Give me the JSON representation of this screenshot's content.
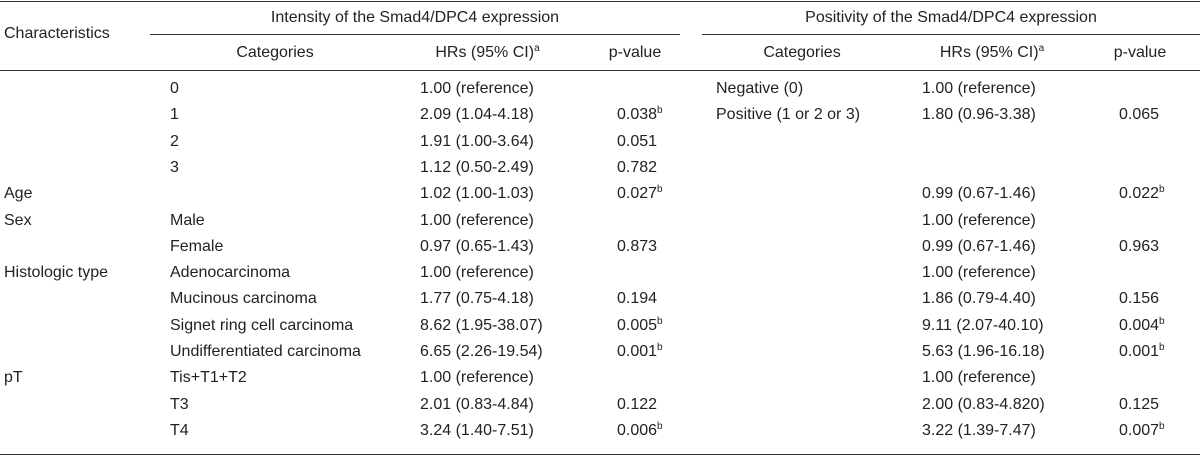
{
  "table": {
    "characteristics_label": "Characteristics",
    "groups": [
      {
        "title": "Intensity of the Smad4/DPC4 expression",
        "col_categories": "Categories",
        "col_hr": "HRs (95% CI)",
        "col_hr_mark": "a",
        "col_p": "p-value"
      },
      {
        "title": "Positivity of the Smad4/DPC4 expression",
        "col_categories": "Categories",
        "col_hr": "HRs (95% CI)",
        "col_hr_mark": "a",
        "col_p": "p-value"
      }
    ],
    "rows": [
      {
        "char": "",
        "cat1": "0",
        "hr1": "1.00 (reference)",
        "p1": "",
        "p1_mark": "",
        "cat2": "Negative (0)",
        "hr2": "1.00 (reference)",
        "p2": "",
        "p2_mark": ""
      },
      {
        "char": "",
        "cat1": "1",
        "hr1": "2.09 (1.04-4.18)",
        "p1": "0.038",
        "p1_mark": "b",
        "cat2": "Positive (1 or 2 or 3)",
        "hr2": "1.80 (0.96-3.38)",
        "p2": "0.065",
        "p2_mark": ""
      },
      {
        "char": "",
        "cat1": "2",
        "hr1": "1.91 (1.00-3.64)",
        "p1": "0.051",
        "p1_mark": "",
        "cat2": "",
        "hr2": "",
        "p2": "",
        "p2_mark": ""
      },
      {
        "char": "",
        "cat1": "3",
        "hr1": "1.12 (0.50-2.49)",
        "p1": "0.782",
        "p1_mark": "",
        "cat2": "",
        "hr2": "",
        "p2": "",
        "p2_mark": ""
      },
      {
        "char": "Age",
        "cat1": "",
        "hr1": "1.02 (1.00-1.03)",
        "p1": "0.027",
        "p1_mark": "b",
        "cat2": "",
        "hr2": "0.99 (0.67-1.46)",
        "p2": "0.022",
        "p2_mark": "b"
      },
      {
        "char": "Sex",
        "cat1": "Male",
        "hr1": "1.00 (reference)",
        "p1": "",
        "p1_mark": "",
        "cat2": "",
        "hr2": "1.00 (reference)",
        "p2": "",
        "p2_mark": ""
      },
      {
        "char": "",
        "cat1": "Female",
        "hr1": "0.97 (0.65-1.43)",
        "p1": "0.873",
        "p1_mark": "",
        "cat2": "",
        "hr2": "0.99 (0.67-1.46)",
        "p2": "0.963",
        "p2_mark": ""
      },
      {
        "char": "Histologic type",
        "cat1": "Adenocarcinoma",
        "hr1": "1.00 (reference)",
        "p1": "",
        "p1_mark": "",
        "cat2": "",
        "hr2": "1.00 (reference)",
        "p2": "",
        "p2_mark": ""
      },
      {
        "char": "",
        "cat1": "Mucinous carcinoma",
        "hr1": "1.77 (0.75-4.18)",
        "p1": "0.194",
        "p1_mark": "",
        "cat2": "",
        "hr2": "1.86 (0.79-4.40)",
        "p2": "0.156",
        "p2_mark": ""
      },
      {
        "char": "",
        "cat1": "Signet ring cell carcinoma",
        "hr1": "8.62 (1.95-38.07)",
        "p1": "0.005",
        "p1_mark": "b",
        "cat2": "",
        "hr2": "9.11 (2.07-40.10)",
        "p2": "0.004",
        "p2_mark": "b"
      },
      {
        "char": "",
        "cat1": "Undifferentiated carcinoma",
        "hr1": "6.65 (2.26-19.54)",
        "p1": "0.001",
        "p1_mark": "b",
        "cat2": "",
        "hr2": "5.63 (1.96-16.18)",
        "p2": "0.001",
        "p2_mark": "b"
      },
      {
        "char": "pT",
        "cat1": "Tis+T1+T2",
        "hr1": "1.00 (reference)",
        "p1": "",
        "p1_mark": "",
        "cat2": "",
        "hr2": "1.00 (reference)",
        "p2": "",
        "p2_mark": ""
      },
      {
        "char": "",
        "cat1": "T3",
        "hr1": "2.01 (0.83-4.84)",
        "p1": "0.122",
        "p1_mark": "",
        "cat2": "",
        "hr2": "2.00 (0.83-4.820)",
        "p2": "0.125",
        "p2_mark": ""
      },
      {
        "char": "",
        "cat1": "T4",
        "hr1": "3.24 (1.40-7.51)",
        "p1": "0.006",
        "p1_mark": "b",
        "cat2": "",
        "hr2": "3.22 (1.39-7.47)",
        "p2": "0.007",
        "p2_mark": "b"
      }
    ]
  }
}
